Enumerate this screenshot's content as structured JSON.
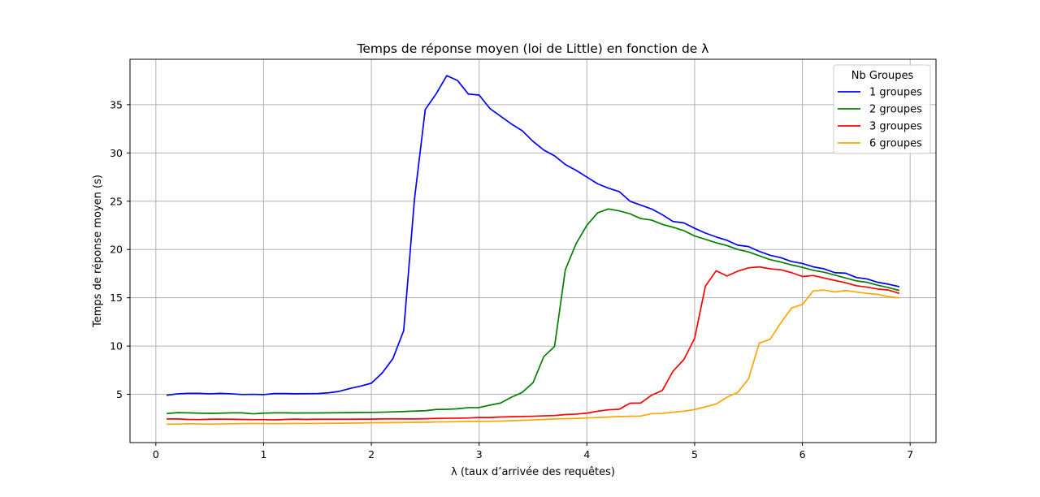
{
  "chart_data": {
    "type": "line",
    "title": "Temps de réponse moyen (loi de Little) en fonction de λ",
    "xlabel": "λ (taux d’arrivée des requêtes)",
    "ylabel": "Temps de réponse moyen (s)",
    "xlim": [
      -0.24,
      7.24
    ],
    "ylim": [
      0.0,
      39.7
    ],
    "xticks": [
      0,
      1,
      2,
      3,
      4,
      5,
      6,
      7
    ],
    "yticks": [
      5,
      10,
      15,
      20,
      25,
      30,
      35
    ],
    "grid": true,
    "legend": {
      "title": "Nb Groupes",
      "placement": "top-right"
    },
    "x": [
      0.1,
      0.2,
      0.3,
      0.4,
      0.5,
      0.6,
      0.7,
      0.8,
      0.9,
      1.0,
      1.1,
      1.2,
      1.3,
      1.4,
      1.5,
      1.6,
      1.7,
      1.8,
      1.9,
      2.0,
      2.1,
      2.2,
      2.3,
      2.4,
      2.5,
      2.6,
      2.7,
      2.8,
      2.9,
      3.0,
      3.1,
      3.2,
      3.3,
      3.4,
      3.5,
      3.6,
      3.7,
      3.8,
      3.9,
      4.0,
      4.1,
      4.2,
      4.3,
      4.4,
      4.5,
      4.6,
      4.7,
      4.8,
      4.9,
      5.0,
      5.1,
      5.2,
      5.3,
      5.4,
      5.5,
      5.6,
      5.7,
      5.8,
      5.9,
      6.0,
      6.1,
      6.2,
      6.3,
      6.4,
      6.5,
      6.6,
      6.7,
      6.8,
      6.9
    ],
    "series": [
      {
        "name": "1 groupes",
        "color": "#0000ff",
        "values": [
          4.9,
          5.05,
          5.1,
          5.1,
          5.05,
          5.1,
          5.05,
          4.98,
          5.0,
          4.97,
          5.08,
          5.08,
          5.06,
          5.07,
          5.08,
          5.15,
          5.3,
          5.6,
          5.85,
          6.15,
          7.2,
          8.7,
          11.6,
          25.2,
          34.5,
          36.1,
          38.0,
          37.5,
          36.1,
          36.0,
          34.6,
          33.8,
          33.0,
          32.3,
          31.2,
          30.3,
          29.7,
          28.8,
          28.2,
          27.5,
          26.8,
          26.35,
          26.0,
          25.0,
          24.6,
          24.2,
          23.6,
          22.9,
          22.75,
          22.2,
          21.7,
          21.3,
          20.95,
          20.45,
          20.3,
          19.8,
          19.4,
          19.15,
          18.75,
          18.55,
          18.2,
          18.0,
          17.6,
          17.55,
          17.1,
          16.95,
          16.6,
          16.4,
          16.15
        ]
      },
      {
        "name": "2 groupes",
        "color": "#008000",
        "values": [
          3.0,
          3.1,
          3.08,
          3.05,
          3.03,
          3.05,
          3.08,
          3.08,
          2.98,
          3.05,
          3.08,
          3.08,
          3.06,
          3.07,
          3.07,
          3.08,
          3.09,
          3.1,
          3.12,
          3.13,
          3.15,
          3.18,
          3.22,
          3.26,
          3.3,
          3.43,
          3.45,
          3.5,
          3.62,
          3.63,
          3.88,
          4.1,
          4.7,
          5.2,
          6.2,
          8.9,
          9.96,
          17.9,
          20.6,
          22.5,
          23.8,
          24.2,
          24.0,
          23.7,
          23.2,
          23.05,
          22.6,
          22.3,
          21.95,
          21.4,
          21.05,
          20.7,
          20.4,
          20.0,
          19.75,
          19.35,
          18.95,
          18.7,
          18.4,
          18.15,
          17.85,
          17.65,
          17.35,
          17.05,
          16.75,
          16.6,
          16.3,
          16.05,
          15.75
        ]
      },
      {
        "name": "3 groupes",
        "color": "#ff0000",
        "values": [
          2.45,
          2.45,
          2.4,
          2.38,
          2.42,
          2.43,
          2.42,
          2.4,
          2.38,
          2.38,
          2.35,
          2.4,
          2.43,
          2.4,
          2.42,
          2.42,
          2.42,
          2.42,
          2.43,
          2.43,
          2.45,
          2.46,
          2.45,
          2.45,
          2.47,
          2.5,
          2.52,
          2.53,
          2.55,
          2.6,
          2.6,
          2.65,
          2.68,
          2.7,
          2.73,
          2.77,
          2.8,
          2.9,
          2.95,
          3.05,
          3.25,
          3.4,
          3.45,
          4.08,
          4.1,
          4.9,
          5.4,
          7.4,
          8.6,
          10.8,
          16.2,
          17.8,
          17.25,
          17.75,
          18.1,
          18.2,
          18.0,
          17.9,
          17.6,
          17.2,
          17.3,
          17.05,
          16.8,
          16.55,
          16.25,
          16.1,
          15.9,
          15.8,
          15.45
        ]
      },
      {
        "name": "6 groupes",
        "color": "#ffa500",
        "values": [
          1.9,
          1.92,
          1.95,
          1.93,
          1.92,
          1.93,
          1.95,
          1.97,
          1.98,
          1.97,
          1.96,
          1.97,
          1.99,
          1.98,
          1.99,
          2.0,
          2.01,
          2.02,
          2.03,
          2.05,
          2.06,
          2.07,
          2.08,
          2.1,
          2.1,
          2.14,
          2.15,
          2.17,
          2.2,
          2.2,
          2.21,
          2.23,
          2.26,
          2.3,
          2.35,
          2.4,
          2.45,
          2.47,
          2.5,
          2.55,
          2.6,
          2.65,
          2.7,
          2.72,
          2.75,
          3.0,
          3.02,
          3.15,
          3.25,
          3.42,
          3.7,
          4.0,
          4.7,
          5.2,
          6.6,
          10.3,
          10.7,
          12.4,
          13.95,
          14.3,
          15.7,
          15.8,
          15.6,
          15.75,
          15.6,
          15.45,
          15.35,
          15.1,
          15.0
        ]
      }
    ]
  }
}
